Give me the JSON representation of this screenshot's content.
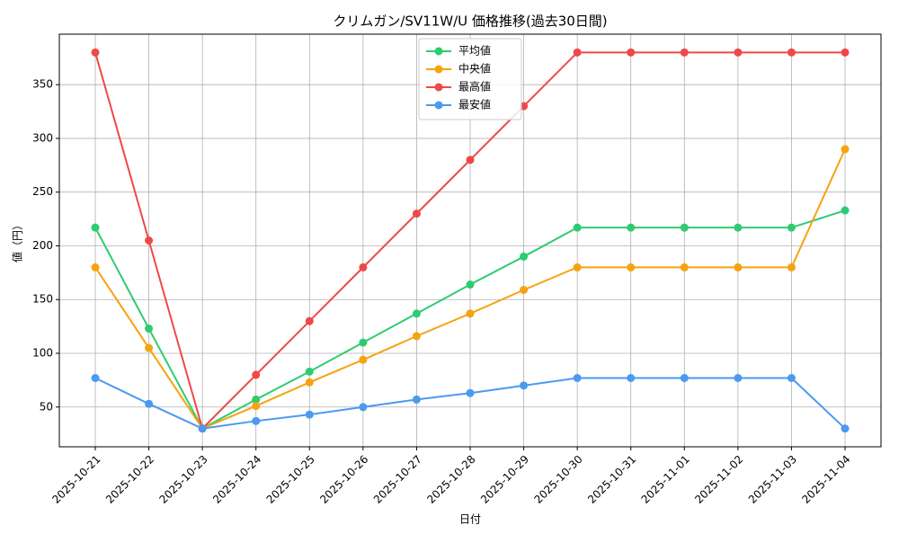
{
  "chart_data": {
    "type": "line",
    "title": "クリムガン/SV11W/U 価格推移(過去30日間)",
    "xlabel": "日付",
    "ylabel": "値（円）",
    "categories": [
      "2025-10-21",
      "2025-10-22",
      "2025-10-23",
      "2025-10-24",
      "2025-10-25",
      "2025-10-26",
      "2025-10-27",
      "2025-10-28",
      "2025-10-29",
      "2025-10-30",
      "2025-10-31",
      "2025-11-01",
      "2025-11-02",
      "2025-11-03",
      "2025-11-04"
    ],
    "series": [
      {
        "name": "平均値",
        "color": "#2ecc71",
        "values": [
          217,
          123,
          30,
          57,
          83,
          110,
          137,
          164,
          190,
          217,
          217,
          217,
          217,
          217,
          233
        ]
      },
      {
        "name": "中央値",
        "color": "#f5a30f",
        "values": [
          180,
          105,
          30,
          51,
          73,
          94,
          116,
          137,
          159,
          180,
          180,
          180,
          180,
          180,
          290
        ]
      },
      {
        "name": "最高値",
        "color": "#ef4848",
        "values": [
          380,
          205,
          30,
          80,
          130,
          180,
          230,
          280,
          330,
          380,
          380,
          380,
          380,
          380,
          380
        ]
      },
      {
        "name": "最安値",
        "color": "#4a9af0",
        "values": [
          77,
          53,
          30,
          37,
          43,
          50,
          57,
          63,
          70,
          77,
          77,
          77,
          77,
          77,
          30
        ]
      }
    ],
    "ylim": [
      13,
      397
    ],
    "yticks": [
      50,
      100,
      150,
      200,
      250,
      300,
      350
    ],
    "grid": true,
    "legend": "upper center"
  }
}
